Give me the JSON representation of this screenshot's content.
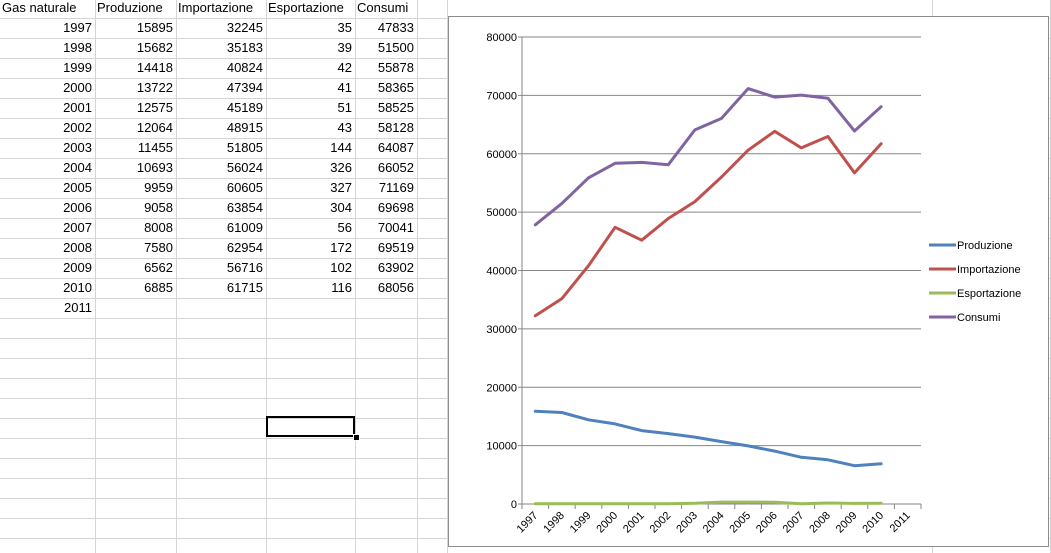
{
  "sheet": {
    "headers": [
      "Gas naturale",
      "Produzione",
      "Importazione",
      "Esportazione",
      "Consumi"
    ],
    "rows": [
      [
        "1997",
        "15895",
        "32245",
        "35",
        "47833"
      ],
      [
        "1998",
        "15682",
        "35183",
        "39",
        "51500"
      ],
      [
        "1999",
        "14418",
        "40824",
        "42",
        "55878"
      ],
      [
        "2000",
        "13722",
        "47394",
        "41",
        "58365"
      ],
      [
        "2001",
        "12575",
        "45189",
        "51",
        "58525"
      ],
      [
        "2002",
        "12064",
        "48915",
        "43",
        "58128"
      ],
      [
        "2003",
        "11455",
        "51805",
        "144",
        "64087"
      ],
      [
        "2004",
        "10693",
        "56024",
        "326",
        "66052"
      ],
      [
        "2005",
        "9959",
        "60605",
        "327",
        "71169"
      ],
      [
        "2006",
        "9058",
        "63854",
        "304",
        "69698"
      ],
      [
        "2007",
        "8008",
        "61009",
        "56",
        "70041"
      ],
      [
        "2008",
        "7580",
        "62954",
        "172",
        "69519"
      ],
      [
        "2009",
        "6562",
        "56716",
        "102",
        "63902"
      ],
      [
        "2010",
        "6885",
        "61715",
        "116",
        "68056"
      ],
      [
        "2011",
        "",
        "",
        "",
        ""
      ]
    ]
  },
  "chart_data": {
    "type": "line",
    "categories": [
      "1997",
      "1998",
      "1999",
      "2000",
      "2001",
      "2002",
      "2003",
      "2004",
      "2005",
      "2006",
      "2007",
      "2008",
      "2009",
      "2010",
      "2011"
    ],
    "series": [
      {
        "name": "Produzione",
        "color": "#4f81bd",
        "values": [
          15895,
          15682,
          14418,
          13722,
          12575,
          12064,
          11455,
          10693,
          9959,
          9058,
          8008,
          7580,
          6562,
          6885,
          null
        ]
      },
      {
        "name": "Importazione",
        "color": "#c0504d",
        "values": [
          32245,
          35183,
          40824,
          47394,
          45189,
          48915,
          51805,
          56024,
          60605,
          63854,
          61009,
          62954,
          56716,
          61715,
          null
        ]
      },
      {
        "name": "Esportazione",
        "color": "#9bbb59",
        "values": [
          35,
          39,
          42,
          41,
          51,
          43,
          144,
          326,
          327,
          304,
          56,
          172,
          102,
          116,
          null
        ]
      },
      {
        "name": "Consumi",
        "color": "#8064a2",
        "values": [
          47833,
          51500,
          55878,
          58365,
          58525,
          58128,
          64087,
          66052,
          71169,
          69698,
          70041,
          69519,
          63902,
          68056,
          null
        ]
      }
    ],
    "ylim": [
      0,
      80000
    ],
    "yticks": [
      "0",
      "10000",
      "20000",
      "30000",
      "40000",
      "50000",
      "60000",
      "70000",
      "80000"
    ],
    "grid": true,
    "legend": "right"
  }
}
